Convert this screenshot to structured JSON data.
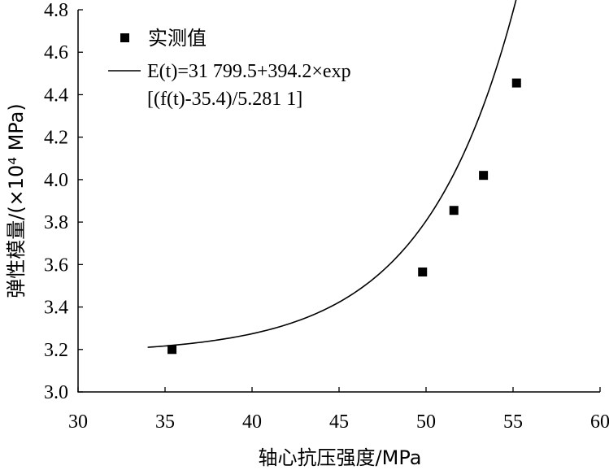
{
  "chart_data": {
    "type": "scatter",
    "xlabel": "轴心抗压强度/MPa",
    "ylabel": "弹性模量/(×10⁴ MPa)",
    "xlim": [
      30,
      60
    ],
    "ylim": [
      3.0,
      4.8
    ],
    "x_ticks": [
      "30",
      "35",
      "40",
      "45",
      "50",
      "55",
      "60"
    ],
    "y_ticks": [
      "3.0",
      "3.2",
      "3.4",
      "3.6",
      "3.8",
      "4.0",
      "4.2",
      "4.4",
      "4.6",
      "4.8"
    ],
    "legend": {
      "position": "top-left",
      "marker_label": "实测值",
      "fit_label_line1": "E(t)=31 799.5+394.2×exp",
      "fit_label_line2": "[(f(t)-35.4)/5.281 1]"
    },
    "series": [
      {
        "name": "实测值",
        "kind": "marker",
        "x": [
          35.4,
          49.8,
          51.6,
          53.3,
          55.2
        ],
        "y": [
          3.2,
          3.565,
          3.855,
          4.02,
          4.455
        ]
      },
      {
        "name": "E(t)=31 799.5+394.2×exp[(f(t)-35.4)/5.281 1]",
        "kind": "line",
        "x_range": [
          34.0,
          56.0
        ],
        "base": 31799.5,
        "amp": 394.2,
        "center": 35.4,
        "scale": 5.2811,
        "unit_divisor": 10000
      }
    ]
  }
}
